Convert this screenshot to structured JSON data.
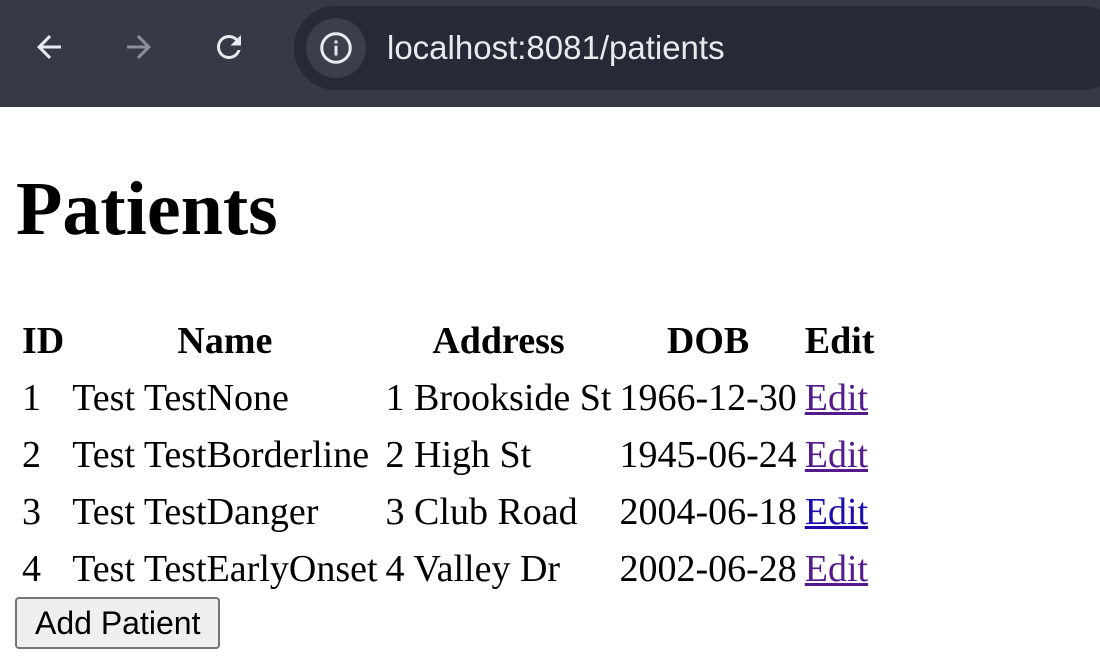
{
  "browser": {
    "url": "localhost:8081/patients"
  },
  "page": {
    "title": "Patients",
    "add_button_label": "Add Patient"
  },
  "table": {
    "headers": [
      "ID",
      "Name",
      "Address",
      "DOB",
      "Edit"
    ],
    "rows": [
      {
        "id": "1",
        "name": "Test TestNone",
        "address": "1 Brookside St",
        "dob": "1966-12-30",
        "edit": "Edit"
      },
      {
        "id": "2",
        "name": "Test TestBorderline",
        "address": "2 High St",
        "dob": "1945-06-24",
        "edit": "Edit"
      },
      {
        "id": "3",
        "name": "Test TestDanger",
        "address": "3 Club Road",
        "dob": "2004-06-18",
        "edit": "Edit"
      },
      {
        "id": "4",
        "name": "Test TestEarlyOnset",
        "address": "4 Valley Dr",
        "dob": "2002-06-28",
        "edit": "Edit"
      }
    ]
  },
  "icons": {
    "back": "arrow-left-icon",
    "forward": "arrow-right-icon",
    "reload": "reload-icon",
    "info": "info-icon"
  },
  "colors": {
    "chrome_bg": "#353a46",
    "omnibox_bg": "#252a36",
    "link_visited": "#551a8b",
    "link_unvisited": "#1a0dab"
  }
}
